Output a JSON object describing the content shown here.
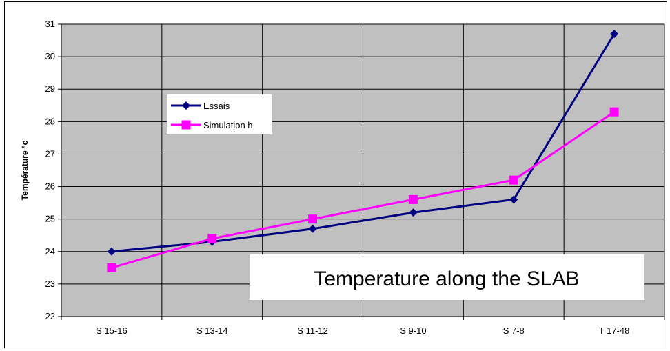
{
  "chart_data": {
    "type": "line",
    "title": "",
    "xlabel": "",
    "ylabel": "Température °c",
    "categories": [
      "S 15-16",
      "S 13-14",
      "S 11-12",
      "S 9-10",
      "S 7-8",
      "T 17-48"
    ],
    "ylim": [
      22,
      31
    ],
    "yticks": [
      "22",
      "23",
      "24",
      "25",
      "26",
      "27",
      "28",
      "29",
      "30",
      "31"
    ],
    "grid": true,
    "plot_background": "#c0c0c0",
    "legend_position": "upper-left",
    "annotation": "Temperature along the SLAB",
    "series": [
      {
        "name": "Essais",
        "color": "#000080",
        "marker": "diamond",
        "values": [
          24.0,
          24.3,
          24.7,
          25.2,
          25.6,
          30.7
        ]
      },
      {
        "name": "Simulation h",
        "color": "#ff00ff",
        "marker": "square",
        "values": [
          23.5,
          24.4,
          25.0,
          25.6,
          26.2,
          28.3
        ]
      }
    ]
  }
}
